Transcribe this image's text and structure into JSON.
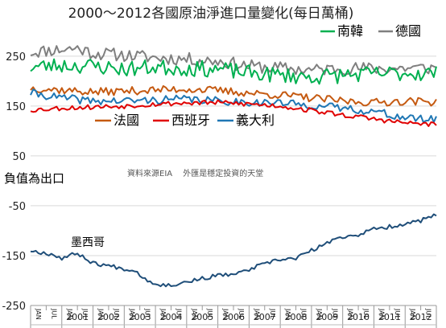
{
  "chart_data": {
    "type": "line",
    "title": "2000～2012各國原油淨進口量變化(每日萬桶)",
    "source_note": "資料來源EIA　 外匯是穩定投資的天堂",
    "negative_note": "負值為出口",
    "ylim": [
      -250,
      290
    ],
    "yticks": [
      250,
      150,
      50,
      -50,
      -150,
      -250
    ],
    "x_start": "2000-01",
    "x_end": "2012-12",
    "month_tick_labels": [
      "JAN",
      "JUL"
    ],
    "years": [
      "2001",
      "2002",
      "2003",
      "2004",
      "2005",
      "2006",
      "2007",
      "2008",
      "2009",
      "2010",
      "2011",
      "2012"
    ],
    "grid": true,
    "legend": [
      {
        "name": "南韓",
        "color": "#00b050",
        "position": "top-right"
      },
      {
        "name": "德國",
        "color": "#7f7f7f",
        "position": "top-right"
      },
      {
        "name": "法國",
        "color": "#c55a11",
        "position": "inline"
      },
      {
        "name": "西班牙",
        "color": "#e00000",
        "position": "inline"
      },
      {
        "name": "義大利",
        "color": "#1f77b4",
        "position": "inline"
      }
    ],
    "annotations": [
      {
        "text": "墨西哥",
        "series": "墨西哥"
      }
    ],
    "series": [
      {
        "name": "德國",
        "color": "#7f7f7f",
        "knots": [
          [
            0,
            258
          ],
          [
            8,
            262
          ],
          [
            18,
            266
          ],
          [
            24,
            256
          ],
          [
            36,
            252
          ],
          [
            48,
            247
          ],
          [
            60,
            244
          ],
          [
            72,
            240
          ],
          [
            84,
            230
          ],
          [
            96,
            226
          ],
          [
            108,
            222
          ],
          [
            120,
            226
          ],
          [
            132,
            225
          ],
          [
            144,
            226
          ],
          [
            156,
            226
          ]
        ],
        "noise": 13,
        "seed": 11
      },
      {
        "name": "南韓",
        "color": "#00b050",
        "knots": [
          [
            0,
            228
          ],
          [
            12,
            232
          ],
          [
            24,
            230
          ],
          [
            36,
            224
          ],
          [
            48,
            228
          ],
          [
            60,
            225
          ],
          [
            72,
            224
          ],
          [
            84,
            216
          ],
          [
            96,
            212
          ],
          [
            108,
            208
          ],
          [
            120,
            212
          ],
          [
            132,
            214
          ],
          [
            144,
            216
          ],
          [
            156,
            216
          ]
        ],
        "noise": 16,
        "seed": 23
      },
      {
        "name": "法國",
        "color": "#c55a11",
        "knots": [
          [
            0,
            186
          ],
          [
            12,
            182
          ],
          [
            24,
            178
          ],
          [
            36,
            180
          ],
          [
            48,
            182
          ],
          [
            60,
            184
          ],
          [
            72,
            181
          ],
          [
            84,
            176
          ],
          [
            96,
            172
          ],
          [
            108,
            166
          ],
          [
            120,
            160
          ],
          [
            132,
            157
          ],
          [
            144,
            160
          ],
          [
            156,
            158
          ]
        ],
        "noise": 8,
        "seed": 37
      },
      {
        "name": "義大利",
        "color": "#1f77b4",
        "knots": [
          [
            0,
            176
          ],
          [
            12,
            166
          ],
          [
            24,
            160
          ],
          [
            36,
            160
          ],
          [
            48,
            162
          ],
          [
            60,
            164
          ],
          [
            72,
            160
          ],
          [
            84,
            158
          ],
          [
            96,
            156
          ],
          [
            108,
            151
          ],
          [
            120,
            146
          ],
          [
            132,
            139
          ],
          [
            144,
            126
          ],
          [
            156,
            122
          ]
        ],
        "noise": 8,
        "seed": 41
      },
      {
        "name": "西班牙",
        "color": "#e00000",
        "knots": [
          [
            0,
            142
          ],
          [
            12,
            146
          ],
          [
            24,
            148
          ],
          [
            36,
            150
          ],
          [
            48,
            154
          ],
          [
            60,
            156
          ],
          [
            72,
            157
          ],
          [
            84,
            154
          ],
          [
            96,
            150
          ],
          [
            108,
            141
          ],
          [
            120,
            132
          ],
          [
            132,
            124
          ],
          [
            144,
            116
          ],
          [
            156,
            113
          ]
        ],
        "noise": 5,
        "seed": 53
      },
      {
        "name": "墨西哥",
        "color": "#1f4e79",
        "knots": [
          [
            0,
            -140
          ],
          [
            8,
            -147
          ],
          [
            12,
            -155
          ],
          [
            18,
            -145
          ],
          [
            24,
            -165
          ],
          [
            32,
            -172
          ],
          [
            40,
            -180
          ],
          [
            46,
            -203
          ],
          [
            52,
            -210
          ],
          [
            56,
            -207
          ],
          [
            64,
            -198
          ],
          [
            72,
            -190
          ],
          [
            80,
            -186
          ],
          [
            88,
            -170
          ],
          [
            96,
            -158
          ],
          [
            102,
            -155
          ],
          [
            108,
            -140
          ],
          [
            114,
            -125
          ],
          [
            120,
            -112
          ],
          [
            126,
            -108
          ],
          [
            132,
            -97
          ],
          [
            138,
            -92
          ],
          [
            144,
            -86
          ],
          [
            150,
            -80
          ],
          [
            156,
            -68
          ]
        ],
        "noise": 4,
        "seed": 67
      }
    ]
  }
}
